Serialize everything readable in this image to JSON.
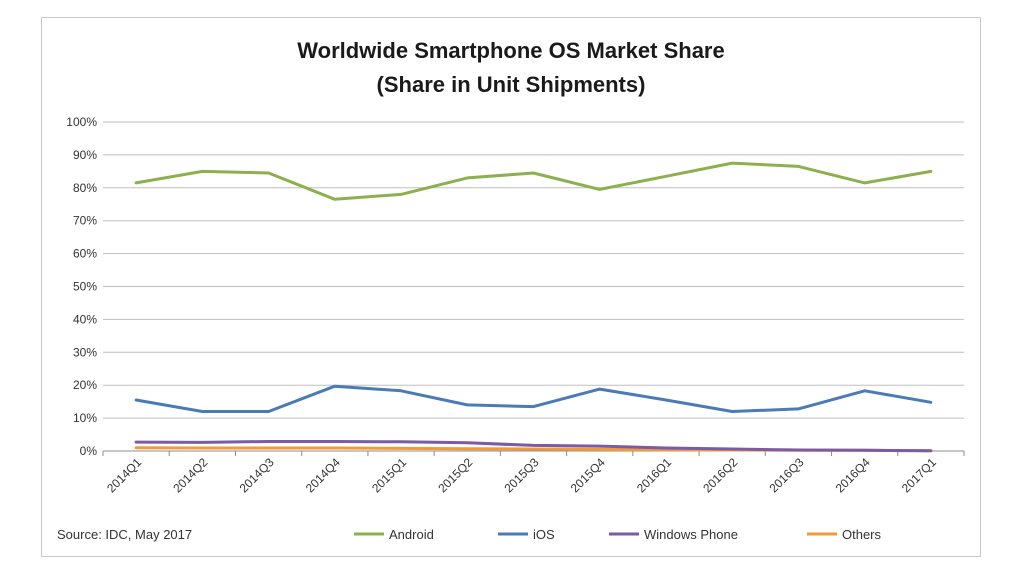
{
  "chart_data": {
    "type": "line",
    "title": "Worldwide Smartphone OS Market Share",
    "subtitle": "(Share in Unit Shipments)",
    "xlabel": "",
    "ylabel": "",
    "categories": [
      "2014Q1",
      "2014Q2",
      "2014Q3",
      "2014Q4",
      "2015Q1",
      "2015Q2",
      "2015Q3",
      "2015Q4",
      "2016Q1",
      "2016Q2",
      "2016Q3",
      "2016Q4",
      "2017Q1"
    ],
    "ylim": [
      0,
      100
    ],
    "y_ticks": [
      "0%",
      "10%",
      "20%",
      "30%",
      "40%",
      "50%",
      "60%",
      "70%",
      "80%",
      "90%",
      "100%"
    ],
    "grid": true,
    "legend_position": "bottom",
    "series": [
      {
        "name": "Android",
        "color": "#8cb04e",
        "values": [
          81.5,
          85.0,
          84.5,
          76.5,
          78.0,
          83.0,
          84.5,
          79.5,
          83.5,
          87.5,
          86.5,
          81.5,
          85.0
        ]
      },
      {
        "name": "iOS",
        "color": "#4a7bb7",
        "values": [
          15.5,
          12.0,
          12.0,
          19.7,
          18.3,
          14.0,
          13.5,
          18.8,
          15.5,
          12.0,
          12.8,
          18.3,
          14.8
        ]
      },
      {
        "name": "Windows Phone",
        "color": "#7b5aa6",
        "values": [
          2.7,
          2.6,
          2.9,
          2.9,
          2.8,
          2.5,
          1.7,
          1.5,
          0.9,
          0.6,
          0.3,
          0.2,
          0.1
        ]
      },
      {
        "name": "Others",
        "color": "#f09a3e",
        "values": [
          1.0,
          0.9,
          0.9,
          0.9,
          0.8,
          0.7,
          0.6,
          0.5,
          0.4,
          0.3,
          0.2,
          0.2,
          0.1
        ]
      }
    ],
    "source": "Source: IDC, May 2017"
  }
}
